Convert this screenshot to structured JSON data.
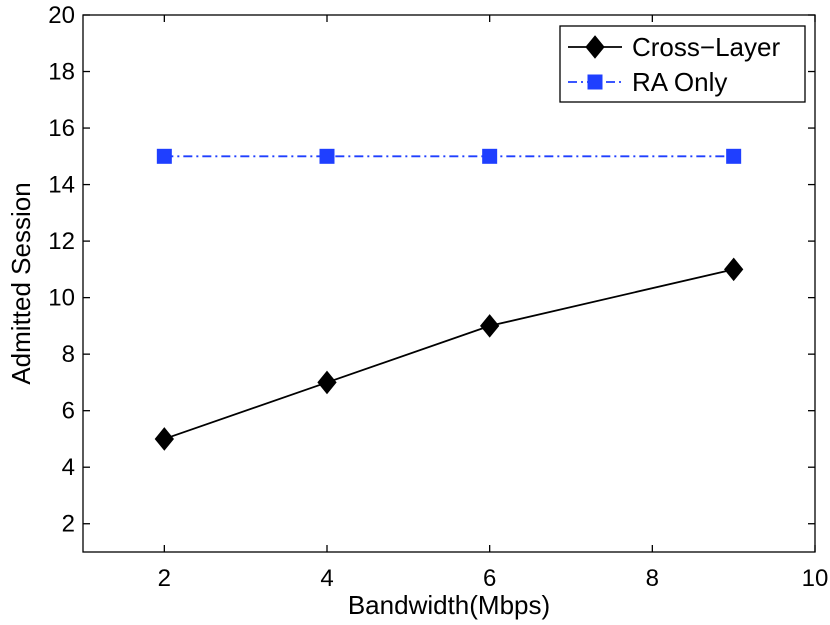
{
  "chart_data": {
    "type": "line",
    "title": "",
    "xlabel": "Bandwidth(Mbps)",
    "ylabel": "Admitted Session",
    "xlim": [
      1,
      10
    ],
    "ylim": [
      1,
      20
    ],
    "xticks": [
      2,
      4,
      6,
      8,
      10
    ],
    "yticks": [
      2,
      4,
      6,
      8,
      10,
      12,
      14,
      16,
      18,
      20
    ],
    "grid": false,
    "legend_location": "top-right",
    "series": [
      {
        "name": "Cross−Layer",
        "marker": "diamond",
        "line_style": "solid",
        "color": "#000000",
        "x": [
          2,
          4,
          6,
          9
        ],
        "y": [
          5,
          7,
          9,
          11
        ]
      },
      {
        "name": "RA Only",
        "marker": "square",
        "line_style": "dash-dot",
        "color": "#1f3fff",
        "x": [
          2,
          4,
          6,
          9
        ],
        "y": [
          15,
          15,
          15,
          15
        ]
      }
    ]
  }
}
